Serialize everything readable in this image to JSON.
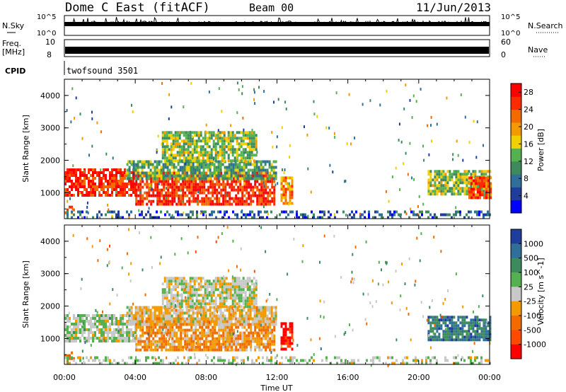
{
  "header": {
    "site": "Dome C East (fitACF)",
    "beam": "Beam 00",
    "date": "11/Jun/2013"
  },
  "strips": {
    "nsky": {
      "label": "N.Sky",
      "top": "10^5",
      "bottom": "10^0"
    },
    "nsearch": {
      "label": "N.Search",
      "top": "10^5",
      "bottom": "10^0"
    },
    "freq": {
      "label": "Freq.",
      "unit": "[MHz]",
      "top": "10",
      "bottom": "8"
    },
    "nave": {
      "label": "Nave",
      "top": "60",
      "bottom": "0"
    },
    "cpid": {
      "label": "CPID",
      "value": "twofsound 3501"
    }
  },
  "colors": {
    "power": [
      "#0000ff",
      "#1f3d9c",
      "#2f6f9a",
      "#3d8a5c",
      "#55b050",
      "#f0d000",
      "#f29a00",
      "#f26a00",
      "#ff2a00",
      "#ff0000"
    ],
    "velocity": [
      "#1f3d9c",
      "#2f6f9a",
      "#3d8a5c",
      "#55b050",
      "#c8c8c8",
      "#f29a00",
      "#f26a00",
      "#ff4a00",
      "#ff0000"
    ]
  },
  "chart_data": [
    {
      "type": "heatmap",
      "panel": "power",
      "xlabel": "",
      "ylabel": "Slant Range [km]",
      "yticks": [
        "1000",
        "2000",
        "3000",
        "4000"
      ],
      "ylim": [
        200,
        4500
      ],
      "xlim_hours": [
        0,
        24
      ],
      "colorbar": {
        "label": "Power [dB]",
        "ticks": [
          "4",
          "8",
          "12",
          "16",
          "20",
          "24",
          "28"
        ],
        "range": [
          0,
          30
        ]
      },
      "regions": [
        {
          "t0": 0.0,
          "t1": 4.0,
          "r0": 900,
          "r1": 1750,
          "level": 26
        },
        {
          "t0": 4.0,
          "t1": 11.9,
          "r0": 650,
          "r1": 1650,
          "level": 26
        },
        {
          "t0": 3.5,
          "t1": 11.9,
          "r0": 1400,
          "r1": 2000,
          "level": 12
        },
        {
          "t0": 5.5,
          "t1": 10.8,
          "r0": 2000,
          "r1": 2900,
          "level": 14
        },
        {
          "t0": 12.2,
          "t1": 12.9,
          "r0": 700,
          "r1": 1500,
          "level": 20
        },
        {
          "t0": 20.5,
          "t1": 24.0,
          "r0": 1000,
          "r1": 1700,
          "level": 14
        },
        {
          "t0": 22.8,
          "t1": 24.0,
          "r0": 850,
          "r1": 1500,
          "level": 24
        },
        {
          "t0": 0.0,
          "t1": 0.5,
          "r0": 350,
          "r1": 600,
          "level": 22
        },
        {
          "t0": 0.0,
          "t1": 24.0,
          "r0": 200,
          "r1": 450,
          "level": 6
        }
      ]
    },
    {
      "type": "heatmap",
      "panel": "velocity",
      "xlabel": "Time UT",
      "ylabel": "Slant Range [km]",
      "yticks": [
        "1000",
        "2000",
        "3000",
        "4000"
      ],
      "ylim": [
        200,
        4500
      ],
      "xticks": [
        "00:00",
        "04:00",
        "08:00",
        "12:00",
        "16:00",
        "20:00",
        "00:00"
      ],
      "xlim_hours": [
        0,
        24
      ],
      "colorbar": {
        "label": "Velocity [m s^-1]",
        "ticks": [
          "1000",
          "500",
          "100",
          "25",
          "-25",
          "-100",
          "-500",
          "-1000"
        ],
        "range": [
          -1000,
          1000
        ]
      },
      "regions": [
        {
          "t0": 0.0,
          "t1": 4.0,
          "r0": 900,
          "r1": 1750,
          "level": 100
        },
        {
          "t0": 4.0,
          "t1": 11.9,
          "r0": 650,
          "r1": 1650,
          "level": -300
        },
        {
          "t0": 3.5,
          "t1": 11.9,
          "r0": 1400,
          "r1": 2000,
          "level": -100
        },
        {
          "t0": 5.5,
          "t1": 10.8,
          "r0": 2000,
          "r1": 2900,
          "level": 0
        },
        {
          "t0": 12.2,
          "t1": 12.9,
          "r0": 700,
          "r1": 1500,
          "level": -900
        },
        {
          "t0": 20.5,
          "t1": 24.0,
          "r0": 1000,
          "r1": 1700,
          "level": 600
        },
        {
          "t0": 0.0,
          "t1": 0.5,
          "r0": 350,
          "r1": 600,
          "level": -600
        },
        {
          "t0": 0.0,
          "t1": 24.0,
          "r0": 200,
          "r1": 450,
          "level": 50
        }
      ]
    }
  ]
}
